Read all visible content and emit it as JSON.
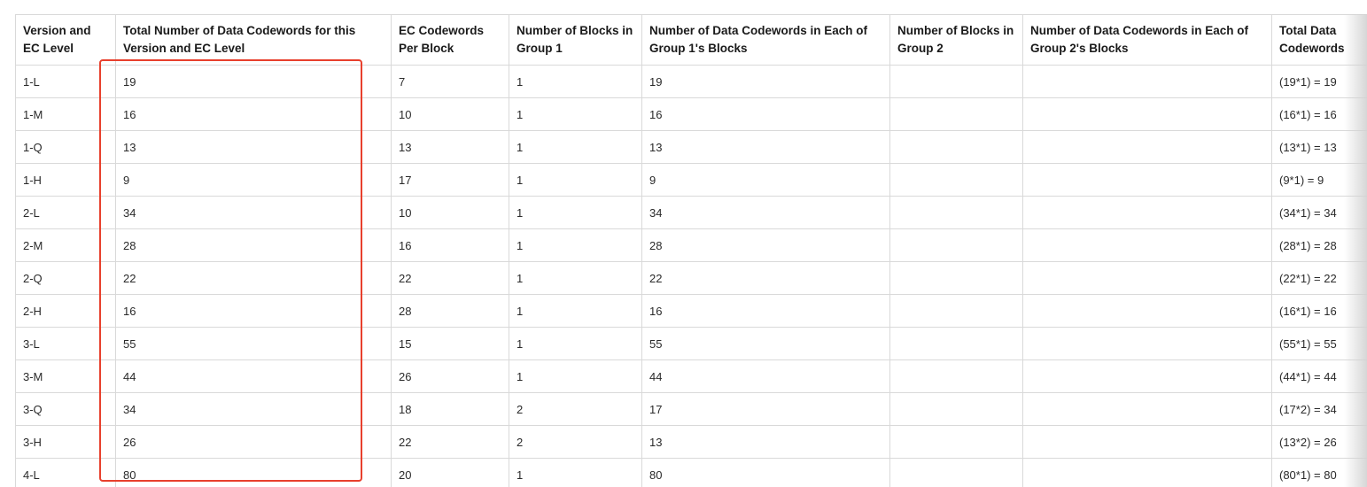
{
  "table": {
    "headers": [
      "Version and EC Level",
      "Total Number of Data Codewords for this Version and EC Level",
      "EC Codewords Per Block",
      "Number of Blocks in Group 1",
      "Number of Data Codewords in Each of Group 1's Blocks",
      "Number of Blocks in Group 2",
      "Number of Data Codewords in Each of Group 2's Blocks",
      "Total Data Codewords"
    ],
    "rows": [
      [
        "1-L",
        "19",
        "7",
        "1",
        "19",
        "",
        "",
        "(19*1) = 19"
      ],
      [
        "1-M",
        "16",
        "10",
        "1",
        "16",
        "",
        "",
        "(16*1) = 16"
      ],
      [
        "1-Q",
        "13",
        "13",
        "1",
        "13",
        "",
        "",
        "(13*1) = 13"
      ],
      [
        "1-H",
        "9",
        "17",
        "1",
        "9",
        "",
        "",
        "(9*1) = 9"
      ],
      [
        "2-L",
        "34",
        "10",
        "1",
        "34",
        "",
        "",
        "(34*1) = 34"
      ],
      [
        "2-M",
        "28",
        "16",
        "1",
        "28",
        "",
        "",
        "(28*1) = 28"
      ],
      [
        "2-Q",
        "22",
        "22",
        "1",
        "22",
        "",
        "",
        "(22*1) = 22"
      ],
      [
        "2-H",
        "16",
        "28",
        "1",
        "16",
        "",
        "",
        "(16*1) = 16"
      ],
      [
        "3-L",
        "55",
        "15",
        "1",
        "55",
        "",
        "",
        "(55*1) = 55"
      ],
      [
        "3-M",
        "44",
        "26",
        "1",
        "44",
        "",
        "",
        "(44*1) = 44"
      ],
      [
        "3-Q",
        "34",
        "18",
        "2",
        "17",
        "",
        "",
        "(17*2) = 34"
      ],
      [
        "3-H",
        "26",
        "22",
        "2",
        "13",
        "",
        "",
        "(13*2) = 26"
      ],
      [
        "4-L",
        "80",
        "20",
        "1",
        "80",
        "",
        "",
        "(80*1) = 80"
      ]
    ]
  },
  "colors": {
    "highlight": "#e8402d",
    "border": "#d9d9d9"
  }
}
